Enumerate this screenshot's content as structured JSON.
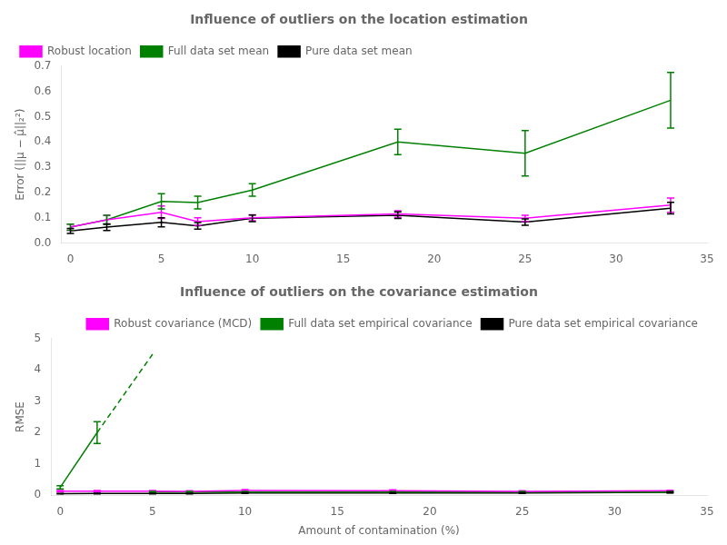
{
  "chart_data": [
    {
      "type": "line",
      "title": "Influence of outliers on the location estimation",
      "y_label": "Error (||μ − μ̂||₂²)",
      "x": [
        0,
        2,
        5,
        7,
        10,
        18,
        25,
        33
      ],
      "series": [
        {
          "name": "Robust location",
          "color": "#FF00FF",
          "values": [
            0.063,
            0.092,
            0.122,
            0.085,
            0.1,
            0.115,
            0.098,
            0.15
          ],
          "errors": [
            0.012,
            0.018,
            0.025,
            0.015,
            0.012,
            0.013,
            0.012,
            0.028
          ]
        },
        {
          "name": "Full data set mean",
          "color": "#008000",
          "values": [
            0.063,
            0.092,
            0.165,
            0.16,
            0.21,
            0.4,
            0.355,
            0.565
          ],
          "errors": [
            0.012,
            0.018,
            0.03,
            0.025,
            0.025,
            0.05,
            0.09,
            0.11
          ]
        },
        {
          "name": "Pure data set mean",
          "color": "#000000",
          "values": [
            0.048,
            0.063,
            0.082,
            0.068,
            0.098,
            0.11,
            0.083,
            0.138
          ],
          "errors": [
            0.01,
            0.013,
            0.018,
            0.013,
            0.013,
            0.013,
            0.013,
            0.023
          ]
        }
      ],
      "xlim": [
        -0.5,
        35
      ],
      "xticks": [
        0,
        5,
        10,
        15,
        20,
        25,
        30,
        35
      ],
      "ylim": [
        0.0,
        0.7
      ],
      "yticks": [
        {
          "value": 0,
          "label": "0.0"
        },
        0.1,
        0.2,
        0.3,
        0.4,
        0.5,
        0.6,
        0.7
      ],
      "grid": false,
      "legend": "upper left"
    },
    {
      "type": "line",
      "title": "Influence of outliers on the covariance estimation",
      "x_label": "Amount of contamination (%)",
      "y_label": "RMSE",
      "series": [
        {
          "name": "Robust covariance (MCD)",
          "color": "#FF00FF",
          "x": [
            0,
            2,
            5,
            7,
            10,
            18,
            25,
            33
          ],
          "values": [
            0.13,
            0.13,
            0.13,
            0.12,
            0.15,
            0.14,
            0.12,
            0.14
          ],
          "errors": [
            0.02,
            0.02,
            0.02,
            0.02,
            0.03,
            0.03,
            0.02,
            0.02
          ]
        },
        {
          "name": "Full data set empirical covariance",
          "color": "#008000",
          "x": [
            0,
            2
          ],
          "values": [
            0.25,
            2.0
          ],
          "errors": [
            0.05,
            0.35
          ]
        },
        {
          "color": "#008000",
          "line_style": "dashed",
          "x": [
            2,
            5
          ],
          "values": [
            2.0,
            4.5
          ]
        },
        {
          "color": "#008000",
          "x": [
            5,
            7,
            10,
            18,
            25,
            33
          ],
          "values": [
            0.1,
            0.1,
            0.1,
            0.1,
            0.1,
            0.1
          ],
          "errors": [
            0.02,
            0.02,
            0.02,
            0.02,
            0.02,
            0.02
          ]
        },
        {
          "name": "Pure data set empirical covariance",
          "color": "#000000",
          "x": [
            0,
            2,
            5,
            7,
            10,
            18,
            25,
            33
          ],
          "values": [
            0.05,
            0.055,
            0.055,
            0.055,
            0.07,
            0.07,
            0.07,
            0.09
          ],
          "errors": [
            0.01,
            0.01,
            0.01,
            0.01,
            0.015,
            0.015,
            0.015,
            0.02
          ]
        }
      ],
      "xlim": [
        -0.5,
        35
      ],
      "xticks": [
        0,
        5,
        10,
        15,
        20,
        25,
        30,
        35
      ],
      "ylim": [
        0,
        5
      ],
      "yticks": [
        0,
        1,
        2,
        3,
        4,
        5
      ],
      "grid": false,
      "legend": "upper right"
    }
  ]
}
